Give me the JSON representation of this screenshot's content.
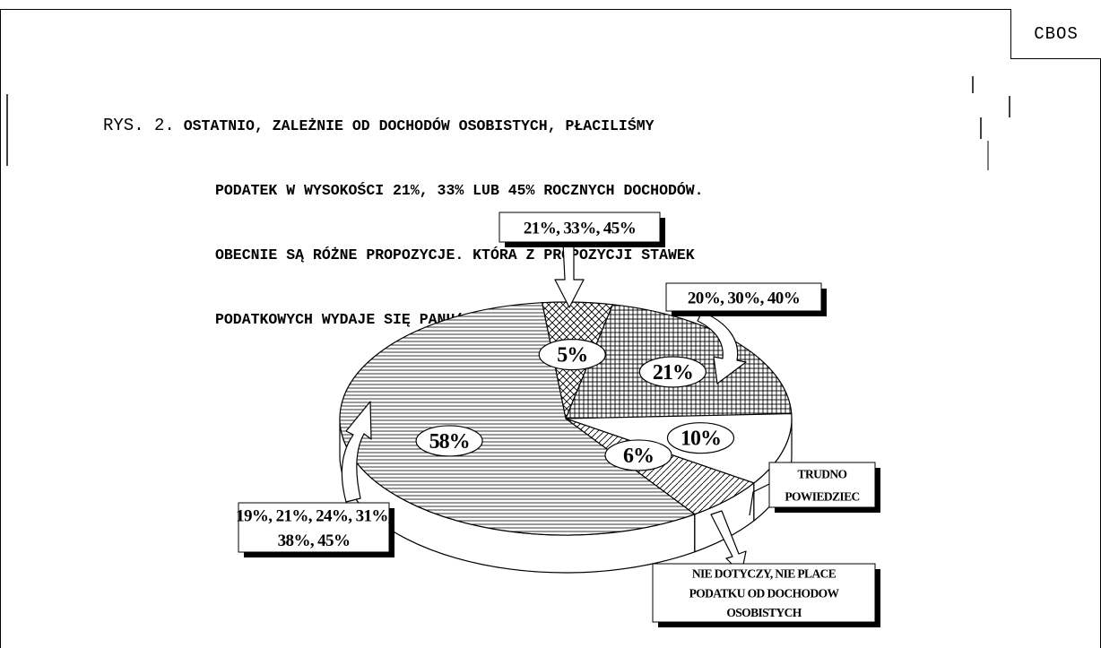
{
  "header": {
    "brand": "CBOS",
    "figure_prefix": "RYS. 2.",
    "title_lines": [
      "OSTATNIO, ZALEŻNIE OD DOCHODÓW OSOBISTYCH, PŁACILIŚMY",
      "PODATEK W WYSOKOŚCI 21%, 33% LUB 45% ROCZNYCH DOCHODÓW.",
      "OBECNIE SĄ RÓŻNE PROPOZYCJE. KTÓRA Z PROPOZYCJI STAWEK",
      "PODATKOWYCH WYDAJE SIĘ PANU(I) NAJBARDZIEJ SŁUSZNA?"
    ]
  },
  "chart_data": {
    "type": "pie",
    "title": "OSTATNIO, ZALEŻNIE OD DOCHODÓW OSOBISTYCH, PŁACILIŚMY PODATEK W WYSOKOŚCI 21%, 33% LUB 45% ROCZNYCH DOCHODÓW. OBECNIE SĄ RÓŻNE PROPOZYCJE. KTÓRA Z PROPOZYCJI STAWEK PODATKOWYCH WYDAJE SIĘ PANU(I) NAJBARDZIEJ SŁUSZNA?",
    "unit": "%",
    "slices": [
      {
        "label": "21%, 33%, 45%",
        "value": 5,
        "value_label": "5%",
        "pattern": "crosshatch"
      },
      {
        "label": "20%, 30%, 40%",
        "value": 21,
        "value_label": "21%",
        "pattern": "grid"
      },
      {
        "label": "TRUDNO POWIEDZIEC",
        "value": 10,
        "value_label": "10%",
        "pattern": "none"
      },
      {
        "label": "NIE DOTYCZY, NIE PLACE PODATKU OD DOCHODOW OSOBISTYCH",
        "value": 6,
        "value_label": "6%",
        "pattern": "diagonal"
      },
      {
        "label": "19%, 21%, 24%, 31%, 38%, 45%",
        "value": 58,
        "value_label": "58%",
        "pattern": "horizontal"
      }
    ],
    "callouts": {
      "slice0": [
        "21%, 33%, 45%"
      ],
      "slice1": [
        "20%, 30%, 40%"
      ],
      "slice2": [
        "TRUDNO",
        "POWIEDZIEC"
      ],
      "slice3": [
        "NIE DOTYCZY, NIE PLACE",
        "PODATKU OD DOCHODOW",
        "OSOBISTYCH"
      ],
      "slice4": [
        "19%, 21%, 24%, 31%,",
        "38%, 45%"
      ]
    }
  }
}
